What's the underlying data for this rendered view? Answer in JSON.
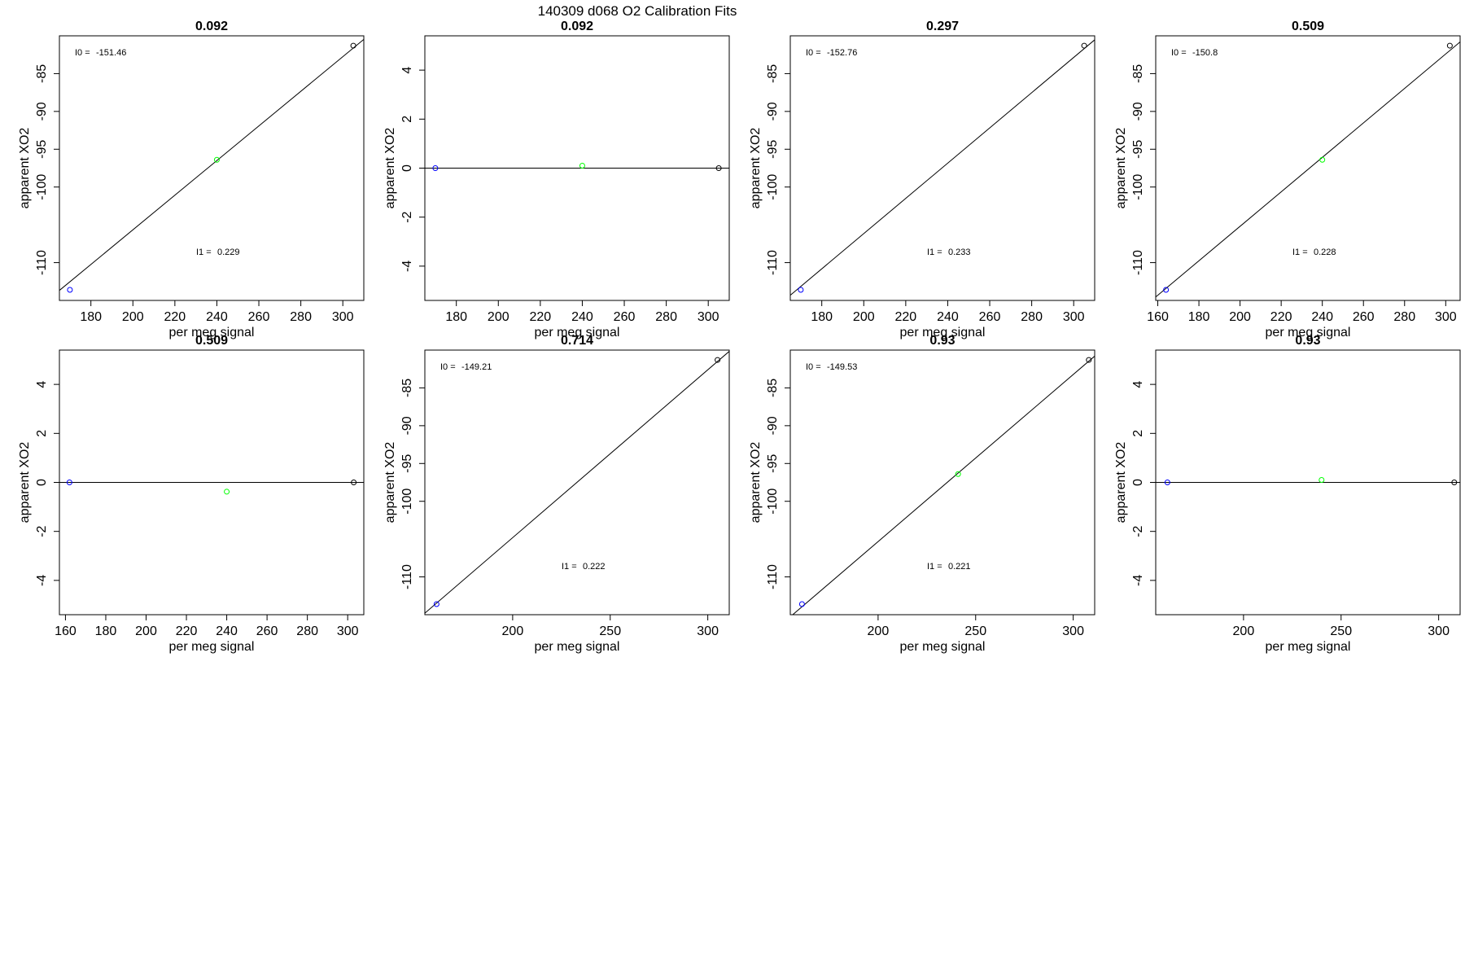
{
  "page_title": "140309   d068   O2 Calibration Fits",
  "colors": {
    "axis": "#000000",
    "fit_line": "#000000",
    "point_low": "#0000ff",
    "point_mid": "#00ff00",
    "point_high": "#000000"
  },
  "chart_data": [
    {
      "type": "scatter",
      "title": "0.092",
      "xlabel": "per meg signal",
      "ylabel": "apparent XO2",
      "xlim": [
        165,
        310
      ],
      "ylim": [
        -115,
        -80
      ],
      "x_ticks": [
        "180",
        "200",
        "220",
        "240",
        "260",
        "280",
        "300"
      ],
      "y_ticks": [
        "-110",
        "-100",
        "-95",
        "-90",
        "-85"
      ],
      "points": [
        {
          "x": 170,
          "y": -113.6
        },
        {
          "x": 240,
          "y": -96.4
        },
        {
          "x": 305,
          "y": -81.3
        }
      ],
      "fit": {
        "intercept": -151.46,
        "slope": 0.229
      },
      "annotations": {
        "i0_label": "I0 =",
        "i0_value": "-151.46",
        "i1_label": "I1 =",
        "i1_value": "0.229"
      }
    },
    {
      "type": "scatter",
      "title": "0.092",
      "xlabel": "per meg signal",
      "ylabel": "apparent XO2",
      "xlim": [
        165,
        310
      ],
      "ylim": [
        -5.4,
        5.4
      ],
      "x_ticks": [
        "180",
        "200",
        "220",
        "240",
        "260",
        "280",
        "300"
      ],
      "y_ticks": [
        "-4",
        "-2",
        "0",
        "2",
        "4"
      ],
      "points": [
        {
          "x": 170,
          "y": 0
        },
        {
          "x": 240,
          "y": 0.1
        },
        {
          "x": 305,
          "y": 0
        }
      ],
      "fit": {
        "intercept": 0,
        "slope": 0
      },
      "annotations": null
    },
    {
      "type": "scatter",
      "title": "0.297",
      "xlabel": "per meg signal",
      "ylabel": "apparent XO2",
      "xlim": [
        165,
        310
      ],
      "ylim": [
        -115,
        -80
      ],
      "x_ticks": [
        "180",
        "200",
        "220",
        "240",
        "260",
        "280",
        "300"
      ],
      "y_ticks": [
        "-110",
        "-100",
        "-95",
        "-90",
        "-85"
      ],
      "points": [
        {
          "x": 170,
          "y": -113.6
        },
        {
          "x": 305,
          "y": -81.3
        }
      ],
      "fit": {
        "intercept": -152.76,
        "slope": 0.233
      },
      "annotations": {
        "i0_label": "I0 =",
        "i0_value": "-152.76",
        "i1_label": "I1 =",
        "i1_value": "0.233"
      }
    },
    {
      "type": "scatter",
      "title": "0.509",
      "xlabel": "per meg signal",
      "ylabel": "apparent XO2",
      "xlim": [
        159,
        307
      ],
      "ylim": [
        -115,
        -80
      ],
      "x_ticks": [
        "160",
        "180",
        "200",
        "220",
        "240",
        "260",
        "280",
        "300"
      ],
      "y_ticks": [
        "-110",
        "-100",
        "-95",
        "-90",
        "-85"
      ],
      "points": [
        {
          "x": 164,
          "y": -113.6
        },
        {
          "x": 240,
          "y": -96.4
        },
        {
          "x": 302,
          "y": -81.3
        }
      ],
      "fit": {
        "intercept": -150.8,
        "slope": 0.228
      },
      "annotations": {
        "i0_label": "I0 =",
        "i0_value": "-150.8",
        "i1_label": "I1 =",
        "i1_value": "0.228"
      }
    },
    {
      "type": "scatter",
      "title": "0.509",
      "xlabel": "per meg signal",
      "ylabel": "apparent XO2",
      "xlim": [
        157,
        308
      ],
      "ylim": [
        -5.4,
        5.4
      ],
      "x_ticks": [
        "160",
        "180",
        "200",
        "220",
        "240",
        "260",
        "280",
        "300"
      ],
      "y_ticks": [
        "-4",
        "-2",
        "0",
        "2",
        "4"
      ],
      "points": [
        {
          "x": 162,
          "y": 0
        },
        {
          "x": 240,
          "y": -0.38
        },
        {
          "x": 303,
          "y": 0
        }
      ],
      "fit": {
        "intercept": 0,
        "slope": 0
      },
      "annotations": null
    },
    {
      "type": "scatter",
      "title": "0.714",
      "xlabel": "per meg signal",
      "ylabel": "apparent XO2",
      "xlim": [
        155,
        311
      ],
      "ylim": [
        -115,
        -80
      ],
      "x_ticks": [
        "200",
        "250",
        "300"
      ],
      "y_ticks": [
        "-110",
        "-100",
        "-95",
        "-90",
        "-85"
      ],
      "points": [
        {
          "x": 161,
          "y": -113.6
        },
        {
          "x": 305,
          "y": -81.3
        }
      ],
      "fit": {
        "intercept": -149.21,
        "slope": 0.222
      },
      "annotations": {
        "i0_label": "I0 =",
        "i0_value": "-149.21",
        "i1_label": "I1 =",
        "i1_value": "0.222"
      }
    },
    {
      "type": "scatter",
      "title": "0.93",
      "xlabel": "per meg signal",
      "ylabel": "apparent XO2",
      "xlim": [
        155,
        311
      ],
      "ylim": [
        -115,
        -80
      ],
      "x_ticks": [
        "200",
        "250",
        "300"
      ],
      "y_ticks": [
        "-110",
        "-100",
        "-95",
        "-90",
        "-85"
      ],
      "points": [
        {
          "x": 161,
          "y": -113.6
        },
        {
          "x": 241,
          "y": -96.4
        },
        {
          "x": 308,
          "y": -81.3
        }
      ],
      "fit": {
        "intercept": -149.53,
        "slope": 0.221
      },
      "annotations": {
        "i0_label": "I0 =",
        "i0_value": "-149.53",
        "i1_label": "I1 =",
        "i1_value": "0.221"
      }
    },
    {
      "type": "scatter",
      "title": "0.93",
      "xlabel": "per meg signal",
      "ylabel": "apparent XO2",
      "xlim": [
        155,
        311
      ],
      "ylim": [
        -5.4,
        5.4
      ],
      "x_ticks": [
        "200",
        "250",
        "300"
      ],
      "y_ticks": [
        "-4",
        "-2",
        "0",
        "2",
        "4"
      ],
      "points": [
        {
          "x": 161,
          "y": 0
        },
        {
          "x": 240,
          "y": 0.1
        },
        {
          "x": 308,
          "y": 0
        }
      ],
      "fit": {
        "intercept": 0,
        "slope": 0
      },
      "annotations": null
    }
  ]
}
